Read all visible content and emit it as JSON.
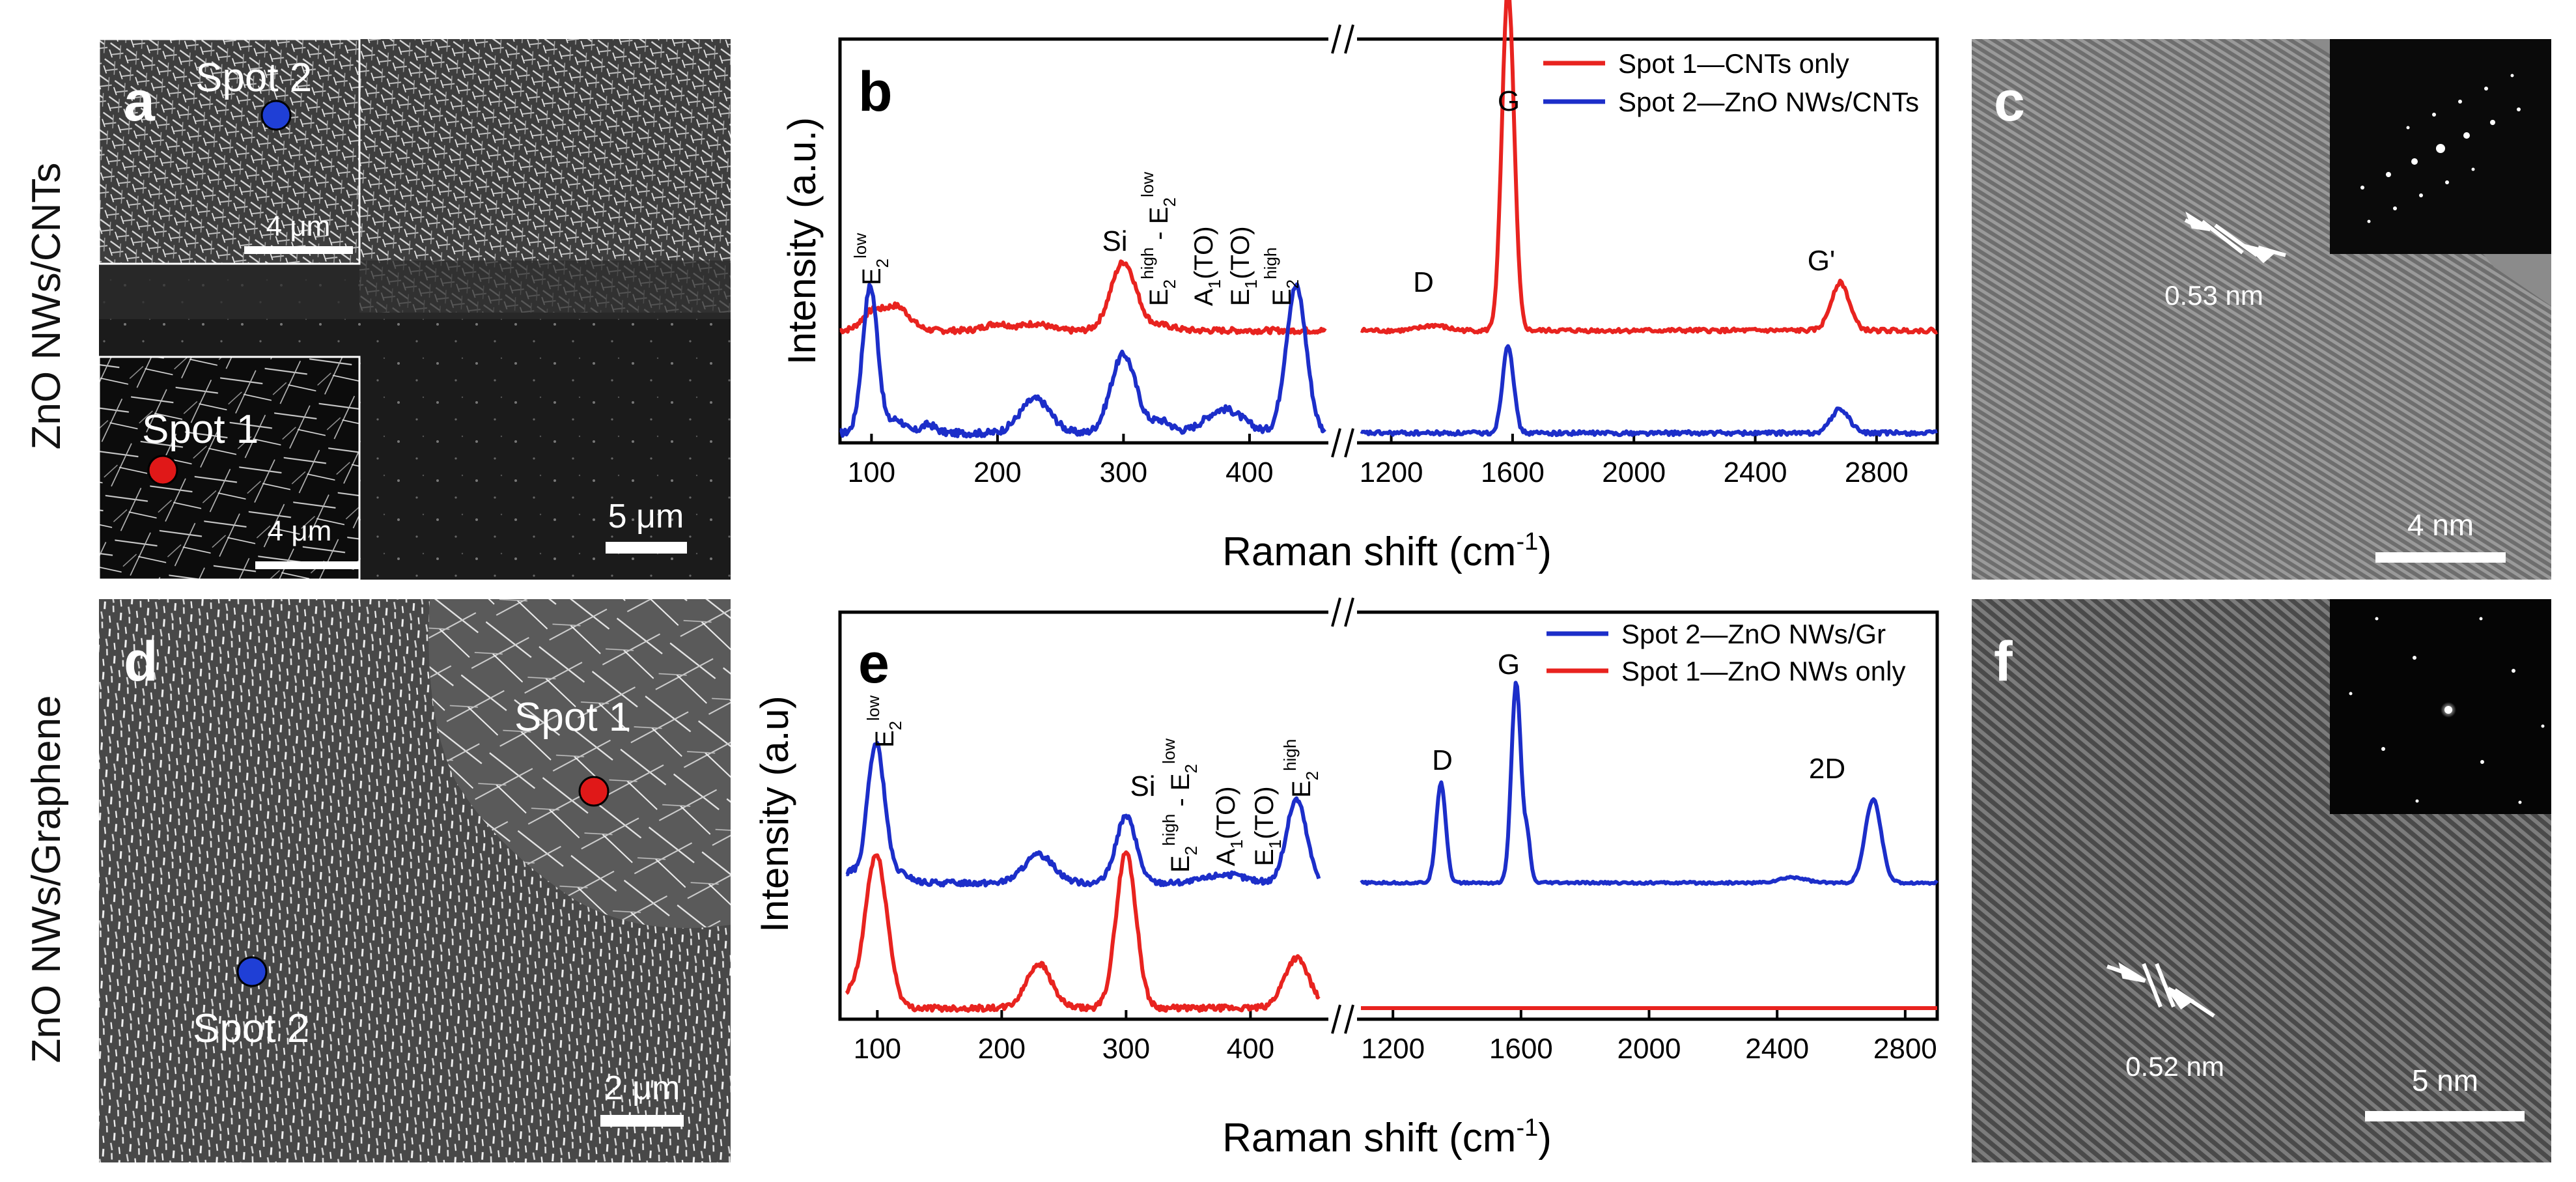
{
  "row_labels": {
    "top": "ZnO NWs/CNTs",
    "bottom": "ZnO NWs/Graphene"
  },
  "panels": {
    "a": {
      "letter": "a",
      "inset_top_label": "Spot 2",
      "inset_top_scale": "4 μm",
      "inset_bottom_label": "Spot 1",
      "inset_bottom_scale": "4 μm",
      "main_scale": "5 μm",
      "spot_colors": {
        "spot1": "#e01818",
        "spot2": "#1f3fd6"
      }
    },
    "c": {
      "letter": "c",
      "spacing": "0.53 nm",
      "scale": "4 nm"
    },
    "d": {
      "letter": "d",
      "spot1": "Spot 1",
      "spot2": "Spot 2",
      "scale": "2 μm"
    },
    "f": {
      "letter": "f",
      "spacing": "0.52 nm",
      "scale": "5 nm"
    }
  },
  "chart_data": [
    {
      "panel": "b",
      "type": "line",
      "letter": "b",
      "xlabel": "Raman shift (cm-1)",
      "ylabel": "Intensity (a.u.)",
      "x_segments": [
        {
          "range": [
            75,
            460
          ],
          "ticks": [
            100,
            200,
            300,
            400
          ]
        },
        {
          "range": [
            1100,
            3000
          ],
          "ticks": [
            1200,
            1600,
            2000,
            2400,
            2800
          ]
        }
      ],
      "legend": [
        {
          "name": "Spot 1—CNTs only",
          "color": "#e8231f"
        },
        {
          "name": "Spot 2—ZnO NWs/CNTs",
          "color": "#1c2ec9"
        }
      ],
      "peak_labels": [
        "E2 low",
        "Si",
        "E2 high - E2 low",
        "A1(TO)",
        "E1(TO)",
        "E2 high",
        "D",
        "G",
        "G'"
      ],
      "series": [
        {
          "name": "Spot 1—CNTs only",
          "color": "#e8231f",
          "baseline": 0.3,
          "segments": [
            {
              "range": [
                75,
                460
              ],
              "noise": 0.008,
              "peaks": [
                [
                  100,
                  0.05,
                  8
                ],
                [
                  120,
                  0.07,
                  10
                ],
                [
                  200,
                  0.02,
                  10
                ],
                [
                  230,
                  0.02,
                  10
                ],
                [
                  300,
                  0.2,
                  10
                ],
                [
                  330,
                  0.015,
                  10
                ]
              ]
            },
            {
              "range": [
                1100,
                3000
              ],
              "noise": 0.006,
              "peaks": [
                [
                  1340,
                  0.015,
                  40
                ],
                [
                  1585,
                  1.0,
                  20
                ],
                [
                  2680,
                  0.14,
                  30
                ]
              ]
            }
          ]
        },
        {
          "name": "Spot 2—ZnO NWs/CNTs",
          "color": "#1c2ec9",
          "baseline": 0.0,
          "segments": [
            {
              "range": [
                75,
                460
              ],
              "noise": 0.01,
              "peaks": [
                [
                  99,
                  0.43,
                  6
                ],
                [
                  120,
                  0.04,
                  6
                ],
                [
                  145,
                  0.025,
                  6
                ],
                [
                  230,
                  0.1,
                  12
                ],
                [
                  300,
                  0.23,
                  10
                ],
                [
                  330,
                  0.035,
                  8
                ],
                [
                  380,
                  0.07,
                  15
                ],
                [
                  437,
                  0.43,
                  8
                ]
              ]
            },
            {
              "range": [
                1100,
                3000
              ],
              "noise": 0.006,
              "peaks": [
                [
                  1585,
                  0.26,
                  18
                ],
                [
                  2680,
                  0.07,
                  30
                ]
              ]
            }
          ]
        }
      ]
    },
    {
      "panel": "e",
      "type": "line",
      "letter": "e",
      "xlabel": "Raman shift (cm-1)",
      "ylabel": "Intensity (a.u)",
      "x_segments": [
        {
          "range": [
            70,
            460
          ],
          "ticks": [
            100,
            200,
            300,
            400
          ]
        },
        {
          "range": [
            1100,
            2900
          ],
          "ticks": [
            1200,
            1600,
            2000,
            2400,
            2800
          ]
        }
      ],
      "legend": [
        {
          "name": "Spot 2—ZnO NWs/Gr",
          "color": "#1c2ec9"
        },
        {
          "name": "Spot 1—ZnO NWs only",
          "color": "#e8231f"
        }
      ],
      "peak_labels": [
        "E2 low",
        "Si",
        "E2 high - E2 low",
        "A1(TO)",
        "E1(TO)",
        "E2 high",
        "D",
        "G",
        "2D"
      ],
      "series": [
        {
          "name": "Spot 2—ZnO NWs/Gr",
          "color": "#1c2ec9",
          "baseline": 0.45,
          "segments": [
            {
              "range": [
                75,
                455
              ],
              "noise": 0.01,
              "peaks": [
                [
                  78,
                  0.04,
                  4
                ],
                [
                  99,
                  0.5,
                  7
                ],
                [
                  120,
                  0.03,
                  7
                ],
                [
                  230,
                  0.1,
                  12
                ],
                [
                  300,
                  0.24,
                  8
                ],
                [
                  380,
                  0.03,
                  15
                ],
                [
                  437,
                  0.3,
                  8
                ]
              ]
            },
            {
              "range": [
                1100,
                2900
              ],
              "noise": 0.004,
              "peaks": [
                [
                  1350,
                  0.36,
                  15
                ],
                [
                  1585,
                  0.72,
                  15
                ],
                [
                  1620,
                  0.15,
                  10
                ],
                [
                  2450,
                  0.02,
                  40
                ],
                [
                  2700,
                  0.3,
                  25
                ]
              ]
            }
          ]
        },
        {
          "name": "Spot 1—ZnO NWs only",
          "color": "#e8231f",
          "baseline": 0.0,
          "segments": [
            {
              "range": [
                75,
                455
              ],
              "noise": 0.01,
              "peaks": [
                [
                  78,
                  0.04,
                  4
                ],
                [
                  99,
                  0.55,
                  9
                ],
                [
                  230,
                  0.16,
                  10
                ],
                [
                  300,
                  0.56,
                  8
                ],
                [
                  437,
                  0.18,
                  10
                ]
              ]
            },
            {
              "range": [
                1100,
                2900
              ],
              "noise": 0.0,
              "peaks": []
            }
          ]
        }
      ]
    }
  ]
}
